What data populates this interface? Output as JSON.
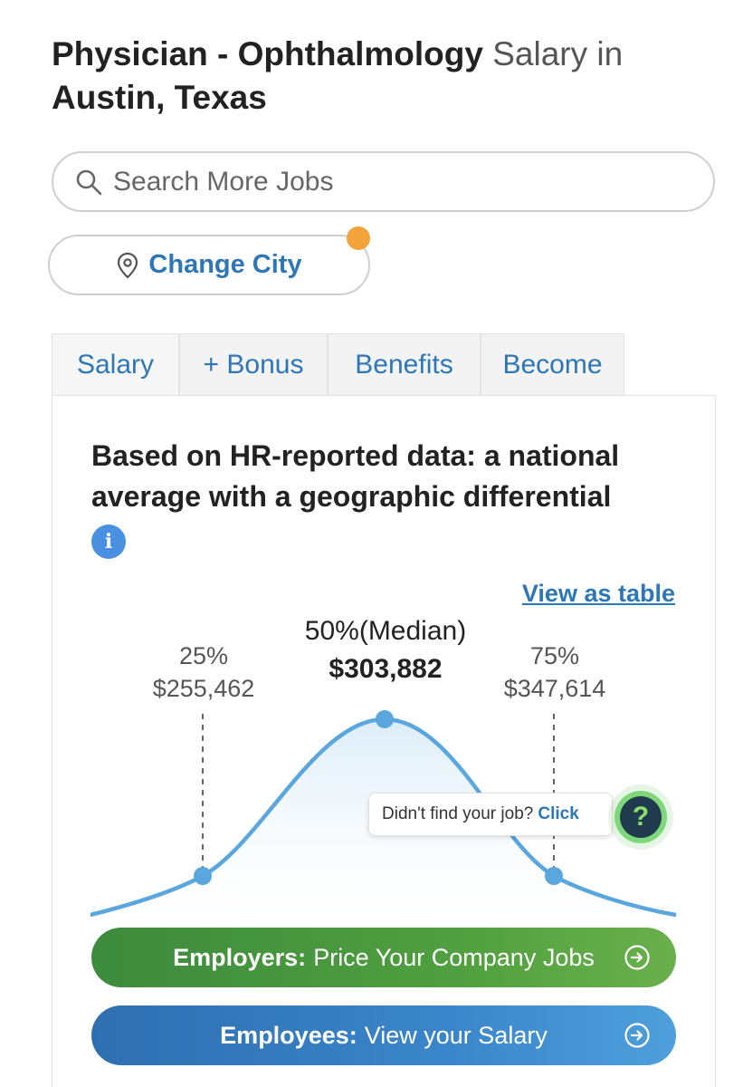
{
  "header": {
    "title_strong": "Physician - Ophthalmology",
    "title_light": "Salary in",
    "title_location": "Austin, Texas"
  },
  "search": {
    "placeholder": "Search More Jobs"
  },
  "city": {
    "button_label": "Change City"
  },
  "tabs": [
    {
      "label": "Salary"
    },
    {
      "label": "+ Bonus"
    },
    {
      "label": "Benefits"
    },
    {
      "label": "Become"
    }
  ],
  "card": {
    "heading": "Based on HR-reported data: a national average with a geographic differential",
    "info_icon_label": "i",
    "view_table_label": "View as table"
  },
  "distribution": {
    "p25": {
      "label": "25%",
      "value": "$255,462"
    },
    "p50": {
      "label": "50%(Median)",
      "value": "$303,882"
    },
    "p75": {
      "label": "75%",
      "value": "$347,614"
    }
  },
  "help": {
    "prompt": "Didn't find your job?",
    "link": "Click",
    "icon_label": "?"
  },
  "cta": {
    "employers_bold": "Employers:",
    "employers_text": "Price Your Company Jobs",
    "employees_bold": "Employees:",
    "employees_text": "View your Salary"
  },
  "colors": {
    "link_blue": "#2d77b7",
    "curve_blue": "#5aa6de",
    "notif_orange": "#f2a33a",
    "employers_green": "#4f9e3f",
    "employees_blue": "#3a85c9"
  }
}
